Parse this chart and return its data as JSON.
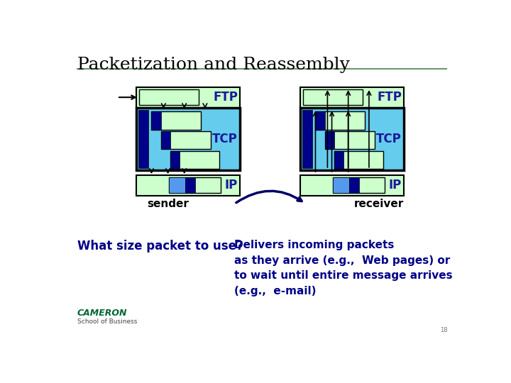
{
  "title": "Packetization and Reassembly",
  "title_fontsize": 18,
  "title_color": "#000000",
  "bg_color": "#ffffff",
  "line_color": "#6b9b6b",
  "text_question": "What size packet to use?",
  "text_answer": "Delivers incoming packets\nas they arrive (e.g.,  Web pages) or\nto wait until entire message arrives\n(e.g.,  e-mail)",
  "text_sender": "sender",
  "text_receiver": "receiver",
  "text_ftp": "FTP",
  "text_tcp": "TCP",
  "text_ip": "IP",
  "label_color": "#1a1a99",
  "ftp_color": "#ccffcc",
  "tcp_color": "#66ccee",
  "ip_color": "#ccffcc",
  "dark_blue": "#000088",
  "medium_blue": "#5599ee",
  "border_color": "#000000",
  "arrow_color": "#000066"
}
